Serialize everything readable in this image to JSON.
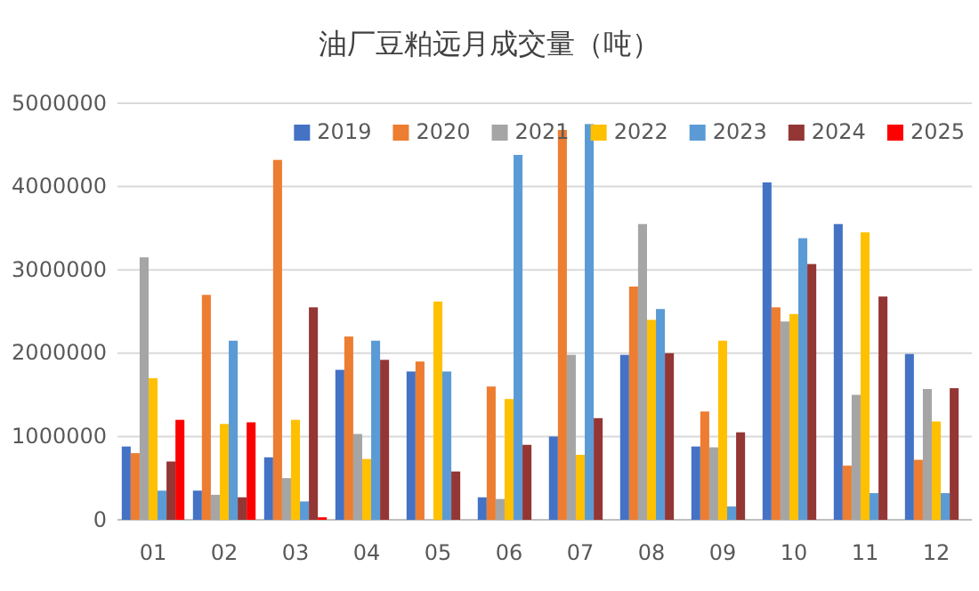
{
  "chart_data": {
    "type": "bar",
    "title": "油厂豆粕远月成交量（吨）",
    "categories": [
      "01",
      "02",
      "03",
      "04",
      "05",
      "06",
      "07",
      "08",
      "09",
      "10",
      "11",
      "12"
    ],
    "series": [
      {
        "name": "2019",
        "color": "#4472c4",
        "values": [
          880000,
          350000,
          750000,
          1800000,
          1780000,
          270000,
          1000000,
          1980000,
          880000,
          4050000,
          3550000,
          1990000
        ]
      },
      {
        "name": "2020",
        "color": "#ed7d31",
        "values": [
          800000,
          2700000,
          4320000,
          2200000,
          1900000,
          1600000,
          4680000,
          2800000,
          1300000,
          2550000,
          650000,
          720000
        ]
      },
      {
        "name": "2021",
        "color": "#a5a5a5",
        "values": [
          3150000,
          300000,
          500000,
          1030000,
          null,
          250000,
          1980000,
          3550000,
          870000,
          2380000,
          1500000,
          1570000
        ]
      },
      {
        "name": "2022",
        "color": "#ffc000",
        "values": [
          1700000,
          1150000,
          1200000,
          730000,
          2620000,
          1450000,
          780000,
          2400000,
          2150000,
          2470000,
          3450000,
          1180000
        ]
      },
      {
        "name": "2023",
        "color": "#5b9bd5",
        "values": [
          350000,
          2150000,
          220000,
          2150000,
          1780000,
          4380000,
          4750000,
          2530000,
          160000,
          3380000,
          320000,
          320000
        ]
      },
      {
        "name": "2024",
        "color": "#943634",
        "values": [
          700000,
          270000,
          2550000,
          1920000,
          580000,
          900000,
          1220000,
          2000000,
          1050000,
          3070000,
          2680000,
          1580000
        ]
      },
      {
        "name": "2025",
        "color": "#ff0000",
        "values": [
          1200000,
          1170000,
          30000,
          null,
          null,
          null,
          null,
          null,
          null,
          null,
          null,
          null
        ]
      }
    ],
    "ylim": [
      0,
      5000000
    ],
    "yticks": [
      0,
      1000000,
      2000000,
      3000000,
      4000000,
      5000000
    ],
    "grid": "y",
    "legend": "top right"
  }
}
